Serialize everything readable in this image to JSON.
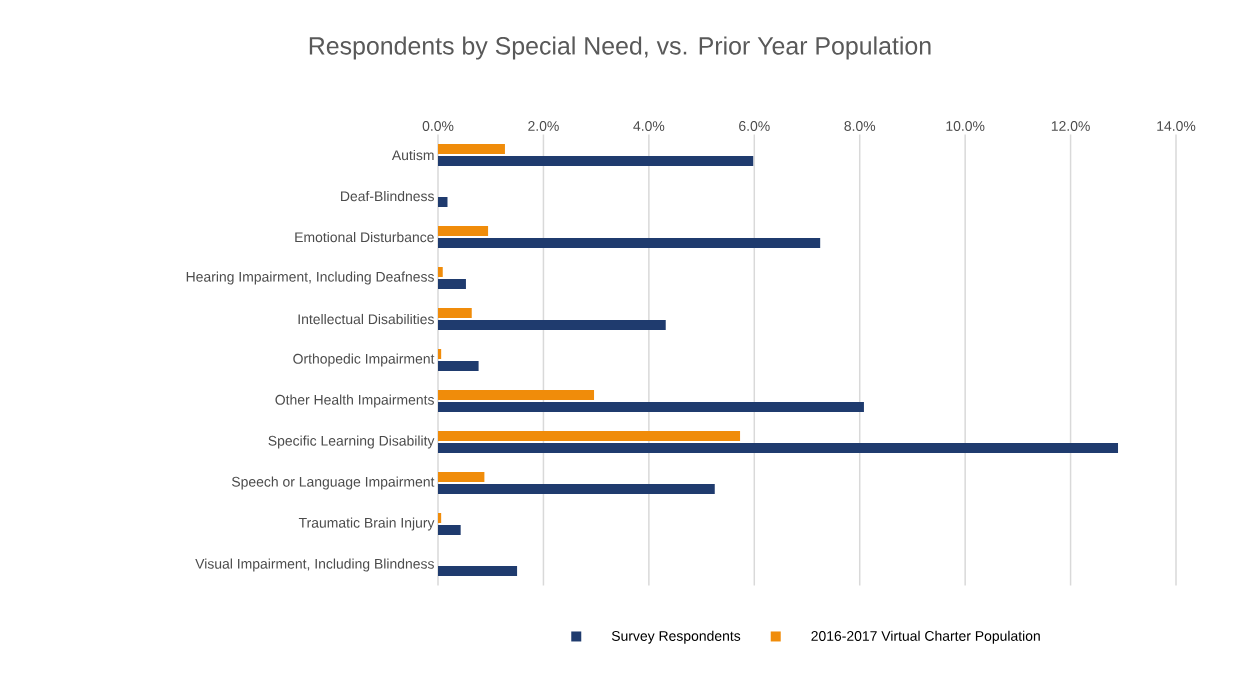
{
  "chart_data": {
    "type": "bar",
    "orientation": "horizontal",
    "title": "Respondents by Special Need, vs. Prior Year Population",
    "categories": [
      "Autism",
      "Deaf-Blindness",
      "Emotional Disturbance",
      "Hearing Impairment, Including Deafness",
      "Intellectual Disabilities",
      "Orthopedic Impairment",
      "Other Health Impairments",
      "Specific Learning Disability",
      "Speech or Language Impairment",
      "Traumatic Brain Injury",
      "Visual Impairment, Including Blindness"
    ],
    "series": [
      {
        "name": "Survey Respondents",
        "color": "#1f3b6e",
        "values": [
          5.98,
          0.18,
          7.25,
          0.53,
          4.32,
          0.77,
          8.08,
          12.9,
          5.25,
          0.43,
          1.5
        ]
      },
      {
        "name": "2016-2017 Virtual Charter Population",
        "color": "#f08c0a",
        "values": [
          1.27,
          0,
          0.95,
          0.09,
          0.64,
          0.06,
          2.96,
          5.73,
          0.88,
          0.06,
          0
        ]
      }
    ],
    "xlim": [
      0,
      14
    ],
    "xticks": [
      {
        "value": 0,
        "label": "0.0%"
      },
      {
        "value": 2,
        "label": "2.0%"
      },
      {
        "value": 4,
        "label": "4.0%"
      },
      {
        "value": 6,
        "label": "6.0%"
      },
      {
        "value": 8,
        "label": "8.0%"
      },
      {
        "value": 10,
        "label": "10.0%"
      },
      {
        "value": 12,
        "label": "12.0%"
      },
      {
        "value": 14,
        "label": "14.0%"
      }
    ],
    "grid": "x",
    "legend": "bottom"
  }
}
